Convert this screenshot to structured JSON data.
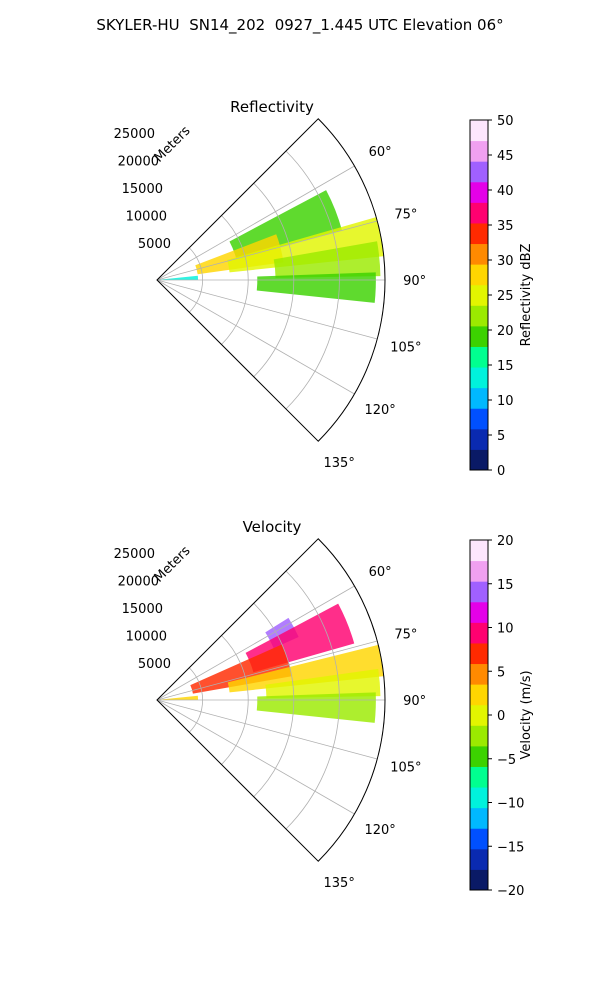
{
  "figure_title": "SKYLER-HU  SN14_202  0927_1.445 UTC Elevation 06°",
  "chart_data": [
    {
      "type": "polar-ppi",
      "title": "Reflectivity",
      "radial_axis_label": "Meters",
      "range_ticks": [
        "5000",
        "10000",
        "15000",
        "20000",
        "25000"
      ],
      "range_max": 25000,
      "azimuth_range_deg": [
        45,
        135
      ],
      "azimuth_ticks": [
        "60°",
        "75°",
        "90°",
        "105°",
        "120°",
        "135°"
      ],
      "grid": true,
      "colorbar": {
        "label": "Reflectivity dBZ",
        "min": 0,
        "max": 50,
        "ticks": [
          "0",
          "5",
          "10",
          "15",
          "20",
          "25",
          "30",
          "35",
          "40",
          "45",
          "50"
        ],
        "colors": [
          "#0a1a66",
          "#0a2ab0",
          "#0050ff",
          "#00b8ff",
          "#00f2dc",
          "#00ff90",
          "#3cd200",
          "#9bea00",
          "#e2f500",
          "#ffd600",
          "#ff8a00",
          "#ff2a00",
          "#ff0070",
          "#e400e8",
          "#a060ff",
          "#f0a0f0",
          "#fde6fd"
        ]
      },
      "echo_regions": [
        {
          "az": [
            62,
            75
          ],
          "r": [
            9000,
            21000
          ],
          "level": 20
        },
        {
          "az": [
            69,
            82
          ],
          "r": [
            4500,
            14000
          ],
          "level": 27
        },
        {
          "az": [
            74,
            84
          ],
          "r": [
            8000,
            25000
          ],
          "level": 24
        },
        {
          "az": [
            80,
            89
          ],
          "r": [
            13000,
            24500
          ],
          "level": 22
        },
        {
          "az": [
            88,
            96
          ],
          "r": [
            11000,
            24000
          ],
          "level": 20
        },
        {
          "az": [
            84,
            90
          ],
          "r": [
            200,
            4500
          ],
          "level": 13
        }
      ]
    },
    {
      "type": "polar-ppi",
      "title": "Velocity",
      "radial_axis_label": "Meters",
      "range_ticks": [
        "5000",
        "10000",
        "15000",
        "20000",
        "25000"
      ],
      "range_max": 25000,
      "azimuth_range_deg": [
        45,
        135
      ],
      "azimuth_ticks": [
        "60°",
        "75°",
        "90°",
        "105°",
        "120°",
        "135°"
      ],
      "grid": true,
      "colorbar": {
        "label": "Velocity (m/s)",
        "min": -20,
        "max": 20,
        "ticks": [
          "−20",
          "−15",
          "−10",
          "−5",
          "0",
          "5",
          "10",
          "15",
          "20"
        ],
        "colors": [
          "#0a1a66",
          "#0a2ab0",
          "#0050ff",
          "#00b8ff",
          "#00f2dc",
          "#00ff90",
          "#3cd200",
          "#9bea00",
          "#e2f500",
          "#ffd600",
          "#ff8a00",
          "#ff2a00",
          "#ff0070",
          "#e400e8",
          "#a060ff",
          "#f0a0f0",
          "#fde6fd"
        ]
      },
      "echo_regions": [
        {
          "az": [
            58,
            66
          ],
          "r": [
            14000,
            17000
          ],
          "level": 14
        },
        {
          "az": [
            62,
            74
          ],
          "r": [
            11000,
            22500
          ],
          "level": 9
        },
        {
          "az": [
            66,
            80
          ],
          "r": [
            4000,
            15000
          ],
          "level": 6
        },
        {
          "az": [
            76,
            84
          ],
          "r": [
            8000,
            25000
          ],
          "level": 3
        },
        {
          "az": [
            82,
            89
          ],
          "r": [
            12000,
            24500
          ],
          "level": -1
        },
        {
          "az": [
            88,
            96
          ],
          "r": [
            11000,
            24000
          ],
          "level": -2
        },
        {
          "az": [
            84,
            90
          ],
          "r": [
            200,
            4500
          ],
          "level": 2
        }
      ]
    }
  ]
}
